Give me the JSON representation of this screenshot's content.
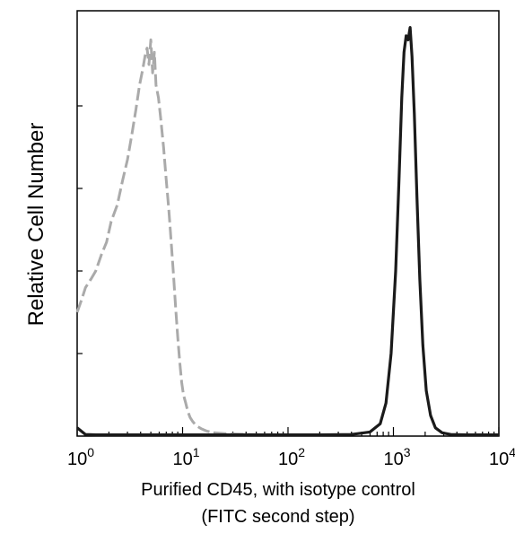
{
  "chart_data": {
    "type": "line",
    "title": "",
    "xlabel": "Purified CD45, with isotype control",
    "xlabel_line2": "(FITC second step)",
    "ylabel": "Relative Cell Number",
    "xscale": "log",
    "xlim": [
      1,
      10000
    ],
    "ylim": [
      0,
      1
    ],
    "grid": false,
    "legend": "none",
    "x_ticks": [
      {
        "base": "10",
        "exp": "0"
      },
      {
        "base": "10",
        "exp": "1"
      },
      {
        "base": "10",
        "exp": "2"
      },
      {
        "base": "10",
        "exp": "3"
      },
      {
        "base": "10",
        "exp": "4"
      }
    ],
    "series": [
      {
        "style": "dashed",
        "color": "#aaaaaa",
        "x": [
          1.0,
          1.1,
          1.2,
          1.35,
          1.5,
          1.7,
          1.9,
          2.1,
          2.4,
          2.7,
          3.0,
          3.3,
          3.6,
          3.9,
          4.2,
          4.4,
          4.6,
          4.8,
          5.0,
          5.2,
          5.4,
          5.6,
          5.9,
          6.2,
          6.6,
          7.0,
          7.4,
          7.8,
          8.2,
          8.6,
          9.0,
          9.4,
          9.8,
          10.2,
          10.7,
          11.2,
          11.8,
          12.5,
          13.5,
          15.0,
          17.0,
          20.0,
          25.0,
          32.0,
          45.0,
          60.0
        ],
        "y": [
          0.3,
          0.33,
          0.36,
          0.38,
          0.4,
          0.44,
          0.47,
          0.52,
          0.56,
          0.62,
          0.67,
          0.73,
          0.79,
          0.85,
          0.89,
          0.92,
          0.94,
          0.9,
          0.96,
          0.88,
          0.93,
          0.85,
          0.82,
          0.77,
          0.7,
          0.62,
          0.55,
          0.47,
          0.39,
          0.31,
          0.24,
          0.18,
          0.13,
          0.1,
          0.08,
          0.06,
          0.045,
          0.035,
          0.025,
          0.018,
          0.012,
          0.008,
          0.006,
          0.005,
          0.004,
          0.003
        ]
      },
      {
        "style": "solid",
        "color": "#1a1a1a",
        "x": [
          1.0,
          1.2,
          1.5,
          2.0,
          3.0,
          5.0,
          10.0,
          20.0,
          50.0,
          100.0,
          200.0,
          400.0,
          600.0,
          750.0,
          850.0,
          950.0,
          1050.0,
          1130.0,
          1200.0,
          1260.0,
          1320.0,
          1380.0,
          1440.0,
          1500.0,
          1580.0,
          1670.0,
          1780.0,
          1900.0,
          2050.0,
          2250.0,
          2500.0,
          2900.0,
          3500.0,
          5000.0,
          10000.0
        ],
        "y": [
          0.02,
          0.004,
          0.003,
          0.003,
          0.003,
          0.003,
          0.003,
          0.003,
          0.003,
          0.003,
          0.003,
          0.004,
          0.01,
          0.03,
          0.08,
          0.2,
          0.4,
          0.62,
          0.82,
          0.93,
          0.97,
          0.96,
          0.99,
          0.92,
          0.78,
          0.58,
          0.38,
          0.22,
          0.11,
          0.05,
          0.02,
          0.008,
          0.004,
          0.003,
          0.003
        ]
      }
    ]
  }
}
